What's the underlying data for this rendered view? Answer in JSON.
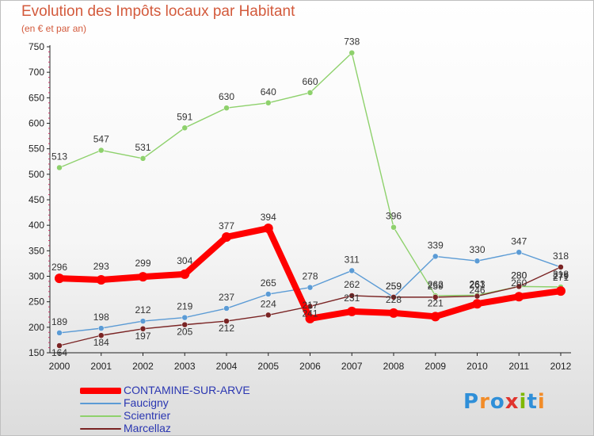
{
  "header": {
    "title": "Evolution des Impôts locaux par Habitant",
    "subtitle": "(en € et par an)"
  },
  "colors": {
    "title": "#d35a3c",
    "legend_text": "#2a36b1",
    "axis": "#222222",
    "tick_marks": "#cc3366"
  },
  "chart_data": {
    "type": "line",
    "title": "Evolution des Impôts locaux par Habitant",
    "subtitle": "(en € et par an)",
    "xlabel": "",
    "ylabel": "",
    "x": [
      "2000",
      "2001",
      "2002",
      "2003",
      "2004",
      "2005",
      "2006",
      "2007",
      "2008",
      "2009",
      "2010",
      "2011",
      "2012"
    ],
    "ylim": [
      150,
      750
    ],
    "yticks": [
      150,
      200,
      250,
      300,
      350,
      400,
      450,
      500,
      550,
      600,
      650,
      700,
      750
    ],
    "grid": false,
    "legend_position": "bottom-left",
    "series": [
      {
        "name": "CONTAMINE-SUR-ARVE",
        "color": "#ff0000",
        "values": [
          296,
          293,
          299,
          304,
          377,
          394,
          217,
          231,
          228,
          221,
          246,
          260,
          271
        ]
      },
      {
        "name": "Faucigny",
        "color": "#5b9bd5",
        "values": [
          189,
          198,
          212,
          219,
          237,
          265,
          278,
          311,
          259,
          339,
          330,
          347,
          318
        ]
      },
      {
        "name": "Scientrier",
        "color": "#8ed16c",
        "values": [
          513,
          547,
          531,
          591,
          630,
          640,
          660,
          738,
          396,
          262,
          263,
          280,
          279
        ]
      },
      {
        "name": "Marcellaz",
        "color": "#7a2424",
        "values": [
          164,
          184,
          197,
          205,
          212,
          224,
          241,
          262,
          259,
          259,
          261,
          280,
          318
        ]
      }
    ]
  },
  "legend": {
    "items": [
      {
        "label": "CONTAMINE-SUR-ARVE",
        "color": "#ff0000"
      },
      {
        "label": "Faucigny",
        "color": "#5b9bd5"
      },
      {
        "label": "Scientrier",
        "color": "#8ed16c"
      },
      {
        "label": "Marcellaz",
        "color": "#7a2424"
      }
    ]
  },
  "logo": {
    "text": "Proxiti",
    "letter_colors": [
      "#2f8fd8",
      "#f28c28",
      "#2f8fd8",
      "#e0342e",
      "#7fb800",
      "#2f8fd8",
      "#f28c28"
    ]
  }
}
